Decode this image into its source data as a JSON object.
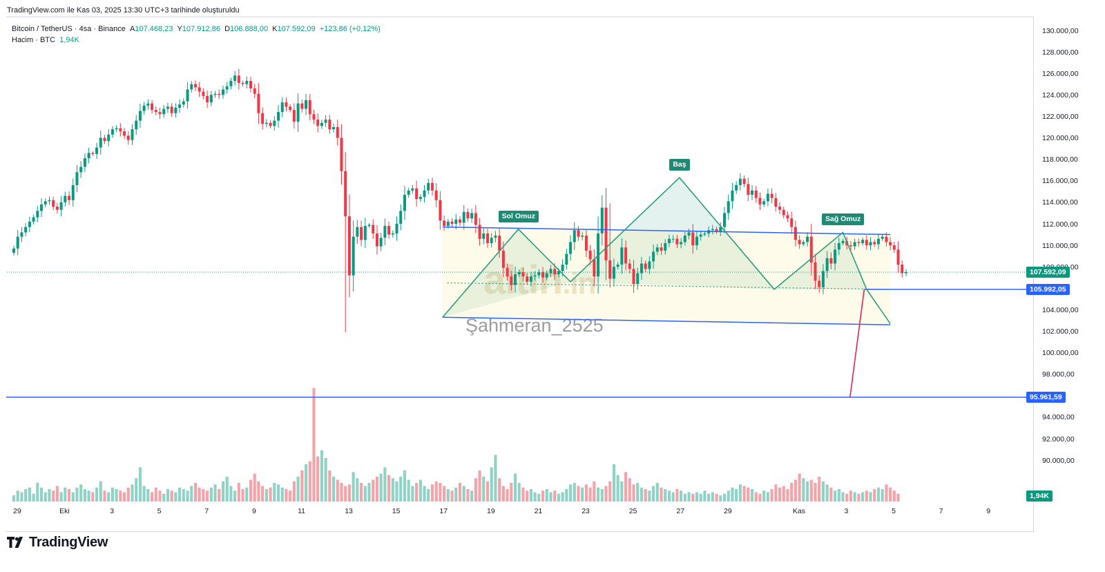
{
  "header": {
    "created_text": "TradingView.com ile Kas 03, 2025 13:30 UTC+3 tarihinde oluşturuldu"
  },
  "legend": {
    "symbol": "Bitcoin / TetherUS · 4sa · Binance",
    "open_label": "A",
    "open": "107.468,23",
    "high_label": "Y",
    "high": "107.912,86",
    "low_label": "D",
    "low": "106.888,00",
    "close_label": "K",
    "close": "107.592,09",
    "change": "+123,86 (+0,12%)",
    "volume_label": "Hacim · BTC",
    "volume_value": "1,94K"
  },
  "footer": {
    "brand": "TradingView"
  },
  "watermark": {
    "brand": "altin",
    "brand_suffix": ".in",
    "user": "Şahmeran_2525"
  },
  "colors": {
    "up": "#089981",
    "down": "#f23645",
    "vol_up": "#8fd2c6",
    "vol_down": "#f5a3a8",
    "line_blue": "#2962ff",
    "pattern_green": "#2a9d7f",
    "target_red": "#e0244e"
  },
  "chart_data": {
    "type": "candlestick",
    "y_range": [
      88500,
      131000
    ],
    "y_ticks": [
      "130.000,00",
      "128.000,00",
      "126.000,00",
      "124.000,00",
      "122.000,00",
      "120.000,00",
      "118.000,00",
      "116.000,00",
      "114.000,00",
      "112.000,00",
      "110.000,00",
      "108.000,00",
      "104.000,00",
      "102.000,00",
      "100.000,00",
      "98.000,00",
      "94.000,00",
      "92.000,00",
      "90.000,00"
    ],
    "y_tick_values": [
      130000,
      128000,
      126000,
      124000,
      122000,
      120000,
      118000,
      116000,
      114000,
      112000,
      110000,
      108000,
      104000,
      102000,
      100000,
      98000,
      94000,
      92000,
      90000
    ],
    "x_range_days": [
      0,
      42
    ],
    "x_ticks": [
      {
        "day": 0,
        "label": "29"
      },
      {
        "day": 2,
        "label": "Eki"
      },
      {
        "day": 4,
        "label": "3"
      },
      {
        "day": 6,
        "label": "5"
      },
      {
        "day": 8,
        "label": "7"
      },
      {
        "day": 10,
        "label": "9"
      },
      {
        "day": 12,
        "label": "11"
      },
      {
        "day": 14,
        "label": "13"
      },
      {
        "day": 16,
        "label": "15"
      },
      {
        "day": 18,
        "label": "17"
      },
      {
        "day": 20,
        "label": "19"
      },
      {
        "day": 22,
        "label": "21"
      },
      {
        "day": 24,
        "label": "23"
      },
      {
        "day": 26,
        "label": "25"
      },
      {
        "day": 28,
        "label": "27"
      },
      {
        "day": 30,
        "label": "29"
      },
      {
        "day": 33,
        "label": "Kas"
      },
      {
        "day": 35,
        "label": "3"
      },
      {
        "day": 37,
        "label": "5"
      },
      {
        "day": 39,
        "label": "7"
      },
      {
        "day": 41,
        "label": "9"
      }
    ],
    "closes": [
      109800,
      110900,
      111300,
      111800,
      112300,
      112700,
      113300,
      113900,
      114200,
      114300,
      113700,
      113400,
      114100,
      114700,
      114300,
      115700,
      116900,
      117400,
      118200,
      118700,
      118600,
      119200,
      120100,
      119800,
      120400,
      120900,
      121000,
      120700,
      120300,
      119900,
      120900,
      121700,
      122600,
      123100,
      123300,
      122700,
      122500,
      122300,
      122800,
      123000,
      122400,
      122900,
      123200,
      123500,
      124600,
      125100,
      124800,
      124400,
      124000,
      123400,
      124100,
      124200,
      124100,
      124600,
      124900,
      125400,
      125900,
      125200,
      125100,
      125400,
      124700,
      124200,
      122400,
      121400,
      121500,
      121200,
      121700,
      122500,
      123400,
      123000,
      122700,
      121600,
      123300,
      122800,
      123600,
      122300,
      121800,
      121200,
      121500,
      121800,
      120900,
      121100,
      120100,
      117000,
      112800,
      107300,
      110900,
      111800,
      110600,
      111900,
      112000,
      111200,
      110000,
      110800,
      111900,
      111100,
      111200,
      112100,
      113300,
      114800,
      115200,
      115400,
      114400,
      114600,
      115200,
      115900,
      115200,
      114300,
      112400,
      111900,
      112300,
      112100,
      112500,
      112200,
      113200,
      112600,
      113100,
      112000,
      110700,
      111200,
      110300,
      110800,
      111000,
      109600,
      108000,
      107200,
      106400,
      107400,
      107600,
      107200,
      106700,
      107200,
      107300,
      107600,
      107100,
      107500,
      107900,
      107400,
      107700,
      108300,
      109300,
      110400,
      111500,
      110900,
      111000,
      109600,
      108800,
      107200,
      111200,
      113600,
      108700,
      107000,
      108100,
      108300,
      109900,
      108400,
      107900,
      106500,
      107500,
      108400,
      107900,
      108600,
      109500,
      109900,
      109600,
      110300,
      110700,
      110700,
      110200,
      110400,
      111000,
      111300,
      110100,
      110900,
      111100,
      111200,
      111500,
      111600,
      111400,
      111800,
      113100,
      114200,
      115200,
      115700,
      116300,
      115800,
      114800,
      115200,
      114500,
      113900,
      114200,
      114900,
      114500,
      113700,
      113400,
      112900,
      112600,
      111800,
      110600,
      110200,
      110400,
      110900,
      108500,
      106800,
      106200,
      107700,
      108900,
      108400,
      109700,
      110300,
      110500,
      110100,
      110000,
      110400,
      110300,
      110600,
      110100,
      110400,
      110200,
      110700,
      110900,
      110400,
      110100,
      109700,
      108300,
      107500,
      107600
    ],
    "volumes_btc": [
      0.4,
      0.7,
      0.6,
      0.8,
      0.9,
      0.5,
      1.2,
      0.9,
      0.6,
      0.8,
      0.7,
      1.0,
      0.6,
      0.9,
      0.8,
      0.6,
      0.9,
      1.1,
      0.8,
      0.7,
      0.6,
      0.9,
      1.3,
      0.7,
      0.6,
      0.9,
      0.8,
      0.7,
      0.6,
      0.9,
      1.1,
      1.5,
      2.2,
      1.0,
      0.8,
      0.6,
      0.9,
      0.7,
      0.5,
      0.8,
      0.7,
      0.6,
      0.9,
      0.8,
      0.7,
      1.0,
      1.2,
      0.9,
      0.8,
      0.7,
      0.9,
      1.1,
      0.8,
      1.3,
      1.6,
      1.0,
      0.7,
      1.2,
      0.8,
      0.9,
      1.4,
      1.8,
      1.3,
      1.0,
      0.8,
      0.9,
      1.2,
      1.1,
      0.9,
      0.8,
      0.7,
      1.3,
      1.6,
      2.0,
      2.4,
      2.6,
      7.3,
      2.9,
      3.3,
      2.8,
      2.0,
      1.6,
      1.4,
      1.2,
      1.0,
      1.1,
      1.9,
      1.5,
      1.2,
      1.0,
      1.2,
      1.4,
      1.6,
      1.8,
      2.2,
      1.7,
      1.5,
      1.3,
      1.6,
      2.0,
      1.4,
      1.0,
      1.2,
      1.4,
      1.0,
      0.8,
      1.1,
      1.3,
      1.2,
      1.0,
      0.8,
      0.7,
      0.9,
      1.2,
      1.0,
      0.8,
      0.7,
      1.5,
      2.0,
      1.6,
      1.3,
      2.2,
      3.0,
      1.5,
      1.0,
      0.8,
      1.2,
      1.8,
      1.2,
      0.9,
      0.7,
      0.8,
      0.6,
      0.5,
      0.7,
      0.8,
      0.6,
      0.7,
      0.5,
      0.6,
      0.8,
      1.1,
      1.2,
      1.0,
      0.9,
      1.1,
      0.9,
      1.3,
      0.9,
      0.8,
      1.0,
      1.3,
      2.4,
      1.7,
      1.3,
      1.9,
      1.5,
      1.1,
      1.2,
      0.9,
      0.8,
      0.7,
      1.0,
      1.2,
      0.9,
      0.8,
      0.7,
      0.6,
      0.8,
      0.7,
      0.5,
      0.6,
      0.5,
      0.6,
      0.5,
      0.7,
      0.5,
      0.6,
      0.5,
      0.4,
      0.5,
      0.7,
      0.9,
      0.8,
      1.1,
      1.0,
      0.9,
      0.8,
      0.6,
      0.5,
      0.7,
      0.6,
      0.8,
      1.1,
      0.9,
      1.0,
      0.8,
      1.2,
      1.4,
      1.8,
      1.5,
      1.3,
      1.4,
      1.2,
      1.6,
      1.3,
      1.1,
      0.9,
      0.7,
      0.8,
      0.6,
      0.5,
      0.7,
      0.6,
      0.5,
      0.6,
      0.7,
      0.6,
      0.8,
      0.9,
      0.8,
      1.1,
      0.9,
      0.7,
      0.5
    ],
    "volume_scale_max": 8.0,
    "current_price": 107592.09,
    "current_price_label": "107.592,09",
    "neckline_price_label": "105.992,05",
    "target_price_label": "95.961,59",
    "volume_label": "1,94K",
    "pattern": {
      "name": "head-and-shoulders",
      "labels": {
        "left_shoulder": "Sol Omuz",
        "head": "Baş",
        "right_shoulder": "Sağ Omuz"
      },
      "points": [
        {
          "day": 18.1,
          "price": 103400
        },
        {
          "day": 21.3,
          "price": 111600
        },
        {
          "day": 23.5,
          "price": 106700
        },
        {
          "day": 28.1,
          "price": 116400
        },
        {
          "day": 32.1,
          "price": 106000
        },
        {
          "day": 35.0,
          "price": 111300
        },
        {
          "day": 36.0,
          "price": 106000
        },
        {
          "day": 37.0,
          "price": 102800
        }
      ]
    },
    "channel": {
      "upper": [
        {
          "day": 18.1,
          "price": 111800
        },
        {
          "day": 37.0,
          "price": 111100
        }
      ],
      "lower": [
        {
          "day": 18.1,
          "price": 103400
        },
        {
          "day": 37.0,
          "price": 102700
        }
      ]
    },
    "neckline": {
      "from": {
        "day": 18.3,
        "price": 106600
      },
      "to": {
        "day": 37.0,
        "price": 106000
      }
    },
    "target_level": 95961.59,
    "projection": {
      "from": {
        "day": 35.9,
        "price": 106000
      },
      "to": {
        "day": 35.3,
        "price": 95961.59
      }
    }
  }
}
